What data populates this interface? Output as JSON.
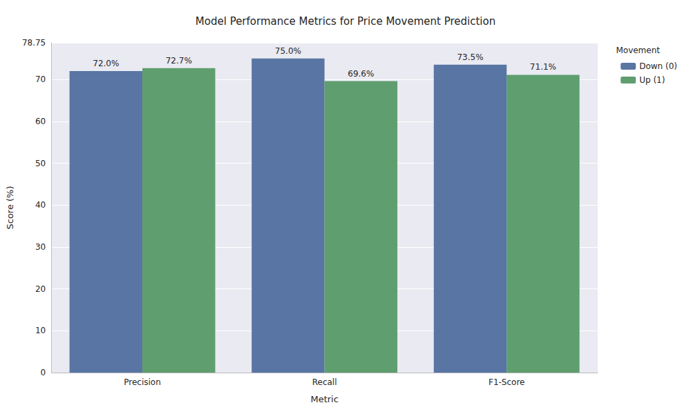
{
  "chart_data": {
    "type": "bar",
    "title": "Model Performance Metrics for Price Movement Prediction",
    "x_label": "Metric",
    "y_label": "Score (%)",
    "legend_title": "Movement",
    "categories": [
      "Precision",
      "Recall",
      "F1-Score"
    ],
    "series": [
      {
        "name": "Down (0)",
        "color": "#5875a4",
        "values": [
          72.0,
          75.0,
          73.5
        ],
        "value_labels": [
          "72.0%",
          "75.0%",
          "73.5%"
        ]
      },
      {
        "name": "Up (1)",
        "color": "#5f9e6e",
        "values": [
          72.7,
          69.6,
          71.1
        ],
        "value_labels": [
          "72.7%",
          "69.6%",
          "71.1%"
        ]
      }
    ],
    "ylim": [
      0,
      78.75
    ],
    "yticks": [
      0,
      10,
      20,
      30,
      40,
      50,
      60,
      70
    ],
    "grid": true,
    "legend": "upper right",
    "data_labels": true
  }
}
